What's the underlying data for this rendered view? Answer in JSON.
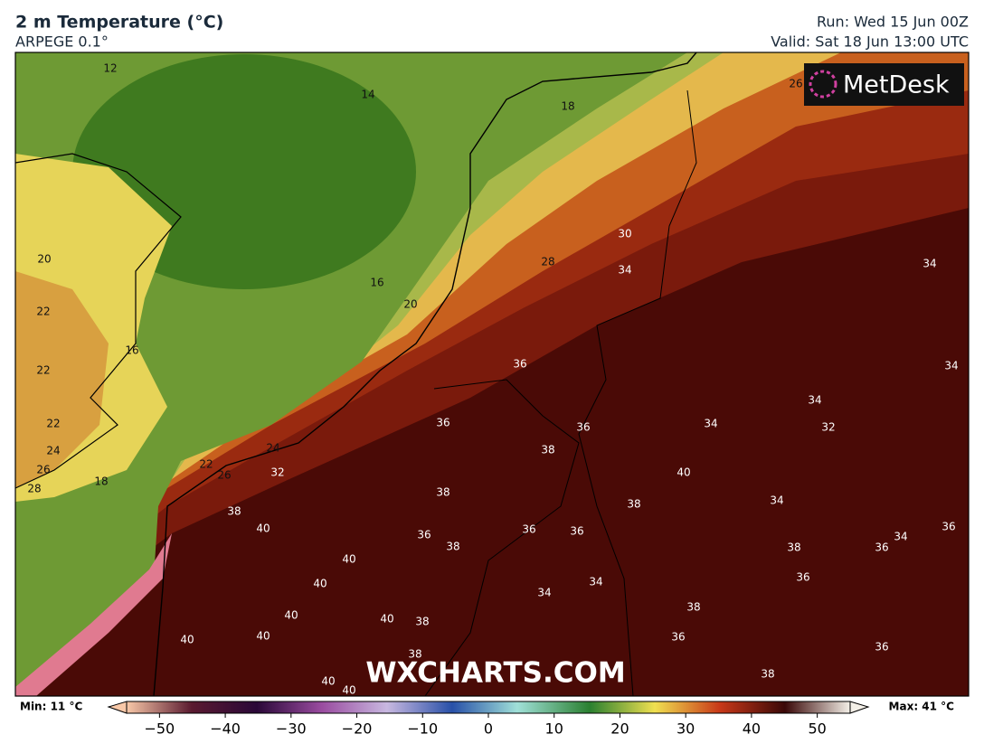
{
  "header": {
    "title": "2 m Temperature (°C)",
    "subtitle": "ARPEGE 0.1°",
    "run": "Run: Wed 15 Jun 00Z",
    "valid": "Valid: Sat 18 Jun 13:00 UTC"
  },
  "logo": "MetDesk",
  "watermark": "WXCHARTS.COM",
  "contour_labels": [
    12,
    14,
    18,
    26,
    30,
    28,
    34,
    34,
    20,
    16,
    20,
    22,
    16,
    36,
    34,
    22,
    34,
    22,
    36,
    36,
    34,
    32,
    24,
    38,
    24,
    22,
    26,
    26,
    32,
    18,
    40,
    28,
    38,
    38,
    34,
    38,
    40,
    36,
    36,
    36,
    38,
    36,
    34,
    38,
    36,
    40,
    36,
    40,
    34,
    34,
    40,
    40,
    38,
    38,
    40,
    40,
    36,
    36,
    38,
    38,
    40,
    40
  ],
  "colorbar": {
    "min_label": "Min: 11 °C",
    "max_label": "Max: 41 °C",
    "lim": [
      -55,
      55
    ],
    "ticks": [
      {
        "value": -50,
        "label": "−50"
      },
      {
        "value": -40,
        "label": "−40"
      },
      {
        "value": -30,
        "label": "−30"
      },
      {
        "value": -20,
        "label": "−20"
      },
      {
        "value": -10,
        "label": "−10"
      },
      0,
      10,
      20,
      30,
      40,
      50
    ]
  }
}
